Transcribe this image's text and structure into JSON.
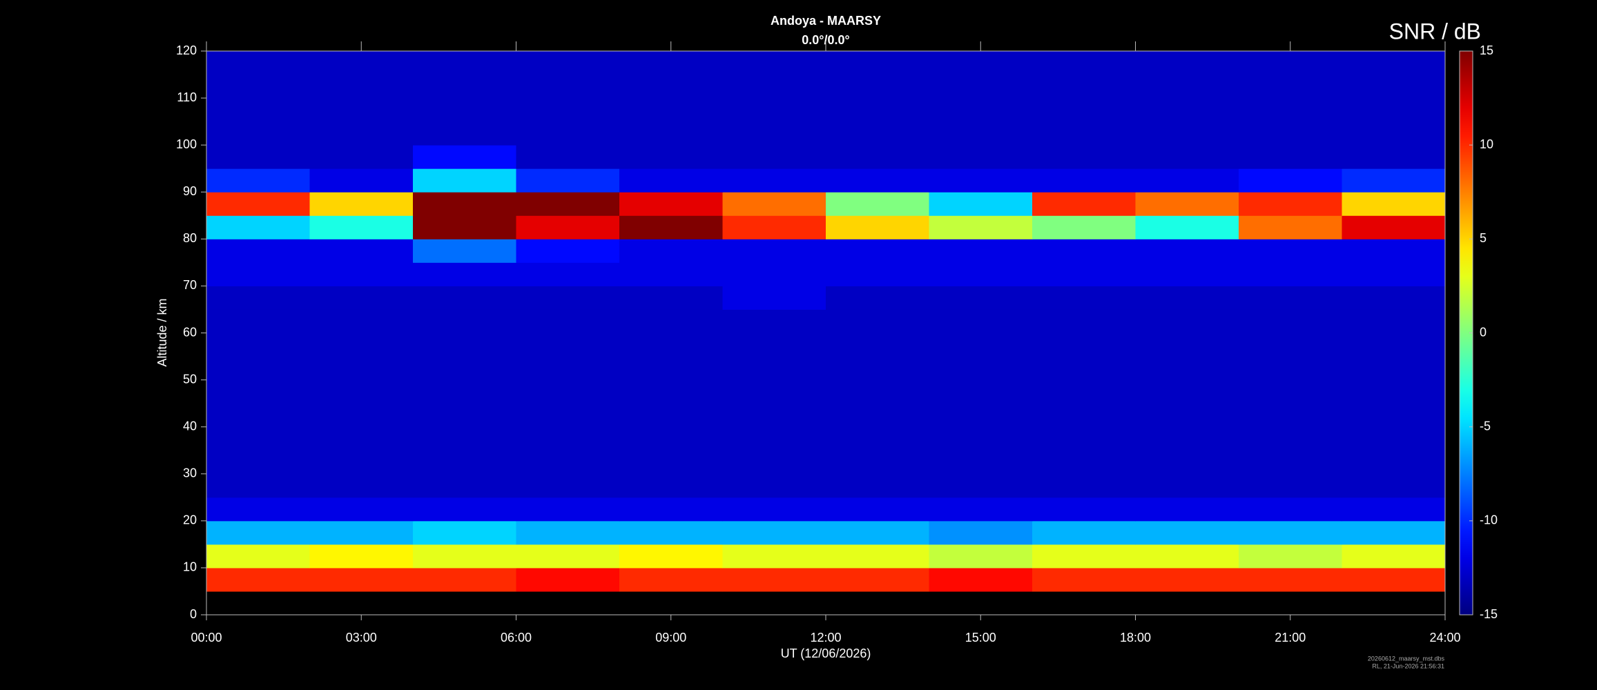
{
  "chart_data": {
    "type": "heatmap",
    "title": "Andoya - MAARSY",
    "subtitle": "0.0°/0.0°",
    "xlabel": "UT (12/06/2026)",
    "ylabel": "Altitude / km",
    "colorbar_label": "SNR / dB",
    "colormap": "jet",
    "footnote": [
      "20260612_maarsy_mst.dbs",
      "RL, 21-Jun-2026 21:56:31"
    ],
    "xlim": [
      0,
      24
    ],
    "xticks": [
      {
        "value": 0,
        "label": "00:00"
      },
      {
        "value": 3,
        "label": "03:00"
      },
      {
        "value": 6,
        "label": "06:00"
      },
      {
        "value": 9,
        "label": "09:00"
      },
      {
        "value": 12,
        "label": "12:00"
      },
      {
        "value": 15,
        "label": "15:00"
      },
      {
        "value": 18,
        "label": "18:00"
      },
      {
        "value": 21,
        "label": "21:00"
      },
      {
        "value": 24,
        "label": "24:00"
      }
    ],
    "ylim": [
      0,
      120
    ],
    "yticks": [
      0,
      10,
      20,
      30,
      40,
      50,
      60,
      70,
      80,
      90,
      100,
      110,
      120
    ],
    "clim": [
      -15,
      15
    ],
    "cticks": [
      -15,
      -10,
      -5,
      0,
      5,
      10,
      15
    ],
    "xbins": [
      0,
      2,
      4,
      6,
      8,
      10,
      12,
      14,
      16,
      18,
      20,
      22,
      24
    ],
    "ybins": [
      5,
      10,
      15,
      20,
      25,
      30,
      35,
      40,
      45,
      50,
      55,
      60,
      65,
      70,
      75,
      80,
      85,
      90,
      95,
      100,
      105,
      110,
      115,
      120
    ],
    "z": [
      [
        10,
        10,
        10,
        11,
        10,
        10,
        10,
        11,
        10,
        10,
        10,
        10
      ],
      [
        3,
        4,
        3,
        3,
        4,
        3,
        3,
        2,
        3,
        3,
        2,
        3
      ],
      [
        -6,
        -6,
        -5,
        -6,
        -6,
        -6,
        -6,
        -7,
        -6,
        -6,
        -6,
        -6
      ],
      [
        -12,
        -12,
        -12,
        -12,
        -12,
        -12,
        -12,
        -12,
        -12,
        -12,
        -12,
        -12
      ],
      [
        -13,
        -13,
        -13,
        -13,
        -13,
        -13,
        -13,
        -13,
        -13,
        -13,
        -13,
        -13
      ],
      [
        -13,
        -13,
        -13,
        -13,
        -13,
        -13,
        -13,
        -13,
        -13,
        -13,
        -13,
        -13
      ],
      [
        -13,
        -13,
        -13,
        -13,
        -13,
        -13,
        -13,
        -13,
        -13,
        -13,
        -13,
        -13
      ],
      [
        -13,
        -13,
        -13,
        -13,
        -13,
        -13,
        -13,
        -13,
        -13,
        -13,
        -13,
        -13
      ],
      [
        -13,
        -13,
        -13,
        -13,
        -13,
        -13,
        -13,
        -13,
        -13,
        -13,
        -13,
        -13
      ],
      [
        -13,
        -13,
        -13,
        -13,
        -13,
        -13,
        -13,
        -13,
        -13,
        -13,
        -13,
        -13
      ],
      [
        -13,
        -13,
        -13,
        -13,
        -13,
        -13,
        -13,
        -13,
        -13,
        -13,
        -13,
        -13
      ],
      [
        -13,
        -13,
        -13,
        -13,
        -13,
        -13,
        -13,
        -13,
        -13,
        -13,
        -13,
        -13
      ],
      [
        -13,
        -13,
        -13,
        -13,
        -13,
        -12,
        -13,
        -13,
        -13,
        -13,
        -13,
        -13
      ],
      [
        -12,
        -12,
        -12,
        -12,
        -12,
        -12,
        -12,
        -12,
        -12,
        -12,
        -12,
        -12
      ],
      [
        -12,
        -12,
        -8,
        -11,
        -12,
        -12,
        -12,
        -12,
        -12,
        -12,
        -12,
        -12
      ],
      [
        -5,
        -3,
        15,
        12,
        15,
        10,
        5,
        2,
        0,
        -3,
        8,
        12
      ],
      [
        10,
        5,
        15,
        15,
        12,
        8,
        0,
        -5,
        10,
        8,
        10,
        5
      ],
      [
        -10,
        -12,
        -5,
        -10,
        -12,
        -12,
        -12,
        -12,
        -12,
        -12,
        -11,
        -10
      ],
      [
        -13,
        -13,
        -11,
        -13,
        -13,
        -13,
        -13,
        -13,
        -13,
        -13,
        -13,
        -13
      ],
      [
        -13,
        -13,
        -13,
        -13,
        -13,
        -13,
        -13,
        -13,
        -13,
        -13,
        -13,
        -13
      ],
      [
        -13,
        -13,
        -13,
        -13,
        -13,
        -13,
        -13,
        -13,
        -13,
        -13,
        -13,
        -13
      ],
      [
        -13,
        -13,
        -13,
        -13,
        -13,
        -13,
        -13,
        -13,
        -13,
        -13,
        -13,
        -13
      ],
      [
        -13,
        -13,
        -13,
        -13,
        -13,
        -13,
        -13,
        -13,
        -13,
        -13,
        -13,
        -13
      ]
    ]
  }
}
